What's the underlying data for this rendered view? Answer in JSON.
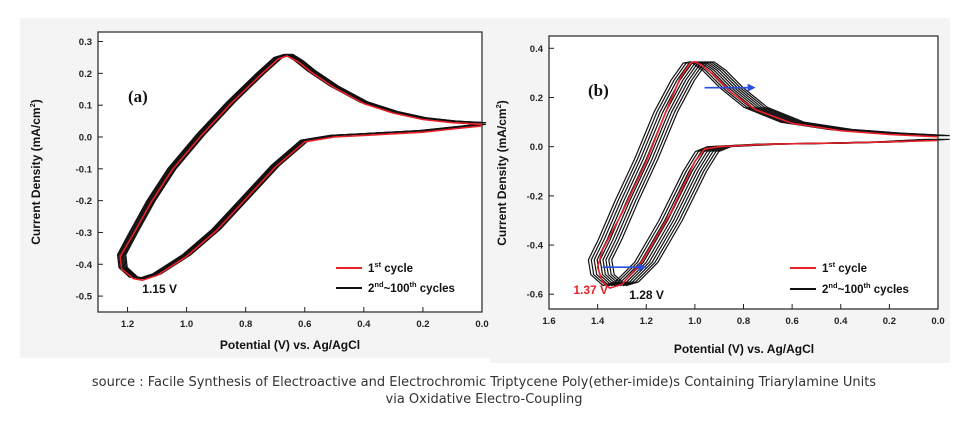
{
  "caption": {
    "line1": "source : Facile Synthesis of Electroactive and Electrochromic Triptycene Poly(ether-imide)s Containing Triarylamine Units",
    "line2": "via Oxidative Electro-Coupling"
  },
  "chart_data": [
    {
      "type": "line",
      "panel_label": "(a)",
      "xlabel": "Potential (V) vs. Ag/AgCl",
      "ylabel": "Current Density (mA/cm²)",
      "ylabel_main": "Current Density (mA/cm",
      "ylabel_sup": "2",
      "ylabel_tail": ")",
      "xlim": [
        1.3,
        0.0
      ],
      "ylim": [
        -0.55,
        0.33
      ],
      "xticks": [
        1.2,
        1.0,
        0.8,
        0.6,
        0.4,
        0.2,
        0.0
      ],
      "xtick_labels": [
        "1.2",
        "1.0",
        "0.8",
        "0.6",
        "0.4",
        "0.2",
        "0.0"
      ],
      "yticks": [
        0.3,
        0.2,
        0.1,
        0.0,
        -0.1,
        -0.2,
        -0.3,
        -0.4,
        -0.5
      ],
      "ytick_labels": [
        "0.3",
        "0.2",
        "0.1",
        "0.0",
        "-0.1",
        "-0.2",
        "-0.3",
        "-0.4",
        "-0.5"
      ],
      "annotations": [
        {
          "text": "1.15 V",
          "x": 1.15,
          "y": -0.49,
          "color": "#111111"
        }
      ],
      "legend": {
        "position": "bottom-right",
        "entries": [
          {
            "color": "#e8202a",
            "label_main": "1",
            "label_sup": "st",
            "label_rest": " cycle"
          },
          {
            "color": "#111111",
            "label_main": "2",
            "label_sup": "nd",
            "label_mid": "~100",
            "label_sup2": "th",
            "label_rest": " cycles"
          }
        ]
      },
      "series": [
        {
          "name": "2nd~100th cycles",
          "color": "#111111",
          "repeat": 8,
          "spread": 0.004,
          "points": [
            [
              0.0,
              0.045
            ],
            [
              0.1,
              0.05
            ],
            [
              0.2,
              0.06
            ],
            [
              0.3,
              0.08
            ],
            [
              0.4,
              0.11
            ],
            [
              0.5,
              0.16
            ],
            [
              0.58,
              0.21
            ],
            [
              0.62,
              0.24
            ],
            [
              0.655,
              0.26
            ],
            [
              0.69,
              0.25
            ],
            [
              0.75,
              0.2
            ],
            [
              0.85,
              0.11
            ],
            [
              0.95,
              0.01
            ],
            [
              1.05,
              -0.1
            ],
            [
              1.12,
              -0.2
            ],
            [
              1.18,
              -0.3
            ],
            [
              1.22,
              -0.37
            ],
            [
              1.215,
              -0.41
            ],
            [
              1.18,
              -0.44
            ],
            [
              1.15,
              -0.445
            ],
            [
              1.1,
              -0.43
            ],
            [
              1.0,
              -0.37
            ],
            [
              0.9,
              -0.29
            ],
            [
              0.8,
              -0.19
            ],
            [
              0.7,
              -0.09
            ],
            [
              0.6,
              -0.01
            ],
            [
              0.5,
              0.005
            ],
            [
              0.4,
              0.01
            ],
            [
              0.3,
              0.015
            ],
            [
              0.2,
              0.02
            ],
            [
              0.1,
              0.03
            ],
            [
              0.0,
              0.04
            ]
          ]
        },
        {
          "name": "1st cycle",
          "color": "#e8202a",
          "repeat": 1,
          "spread": 0,
          "points": [
            [
              0.0,
              0.04
            ],
            [
              0.1,
              0.045
            ],
            [
              0.2,
              0.055
            ],
            [
              0.3,
              0.075
            ],
            [
              0.4,
              0.105
            ],
            [
              0.5,
              0.155
            ],
            [
              0.58,
              0.205
            ],
            [
              0.62,
              0.235
            ],
            [
              0.66,
              0.255
            ],
            [
              0.69,
              0.245
            ],
            [
              0.75,
              0.195
            ],
            [
              0.85,
              0.105
            ],
            [
              0.95,
              0.005
            ],
            [
              1.05,
              -0.105
            ],
            [
              1.12,
              -0.205
            ],
            [
              1.18,
              -0.305
            ],
            [
              1.225,
              -0.375
            ],
            [
              1.22,
              -0.415
            ],
            [
              1.18,
              -0.445
            ],
            [
              1.15,
              -0.45
            ],
            [
              1.1,
              -0.435
            ],
            [
              1.0,
              -0.375
            ],
            [
              0.9,
              -0.295
            ],
            [
              0.8,
              -0.195
            ],
            [
              0.7,
              -0.095
            ],
            [
              0.6,
              -0.015
            ],
            [
              0.5,
              0.0
            ],
            [
              0.4,
              0.005
            ],
            [
              0.3,
              0.01
            ],
            [
              0.2,
              0.015
            ],
            [
              0.1,
              0.025
            ],
            [
              0.0,
              0.035
            ]
          ]
        }
      ]
    },
    {
      "type": "line",
      "panel_label": "(b)",
      "xlabel": "Potential (V) vs. Ag/AgCl",
      "ylabel": "Current Density (mA/cm²)",
      "ylabel_main": "Current Density (mA/cm",
      "ylabel_sup": "2",
      "ylabel_tail": ")",
      "xlim": [
        1.6,
        0.0
      ],
      "ylim": [
        -0.66,
        0.45
      ],
      "xticks": [
        1.6,
        1.4,
        1.2,
        1.0,
        0.8,
        0.6,
        0.4,
        0.2,
        0.0
      ],
      "xtick_labels": [
        "1.6",
        "1.4",
        "1.2",
        "1.0",
        "0.8",
        "0.6",
        "0.4",
        "0.2",
        "0.0"
      ],
      "yticks": [
        0.4,
        0.2,
        0.0,
        -0.2,
        -0.4,
        -0.6
      ],
      "ytick_labels": [
        "0.4",
        "0.2",
        "0.0",
        "-0.2",
        "-0.4",
        "-0.6"
      ],
      "annotations": [
        {
          "text": "1.37 V",
          "x": 1.5,
          "y": -0.6,
          "color": "#e8202a"
        },
        {
          "text": "1.28 V",
          "x": 1.27,
          "y": -0.62,
          "color": "#111111"
        }
      ],
      "arrows": [
        {
          "from": [
            0.96,
            0.24
          ],
          "to": [
            0.75,
            0.24
          ],
          "color": "#2b4fd8"
        },
        {
          "from": [
            1.38,
            -0.49
          ],
          "to": [
            1.2,
            -0.49
          ],
          "color": "#2b4fd8"
        }
      ],
      "legend": {
        "position": "bottom-right",
        "entries": [
          {
            "color": "#e8202a",
            "label_main": "1",
            "label_sup": "st",
            "label_rest": " cycle"
          },
          {
            "color": "#111111",
            "label_main": "2",
            "label_sup": "nd",
            "label_mid": "~100",
            "label_sup2": "th",
            "label_rest": " cycles"
          }
        ]
      },
      "series": [
        {
          "name": "2nd~100th cycles",
          "color": "#111111",
          "repeat": 9,
          "spread": 0.012,
          "points": [
            [
              0.0,
              0.045
            ],
            [
              0.2,
              0.055
            ],
            [
              0.4,
              0.07
            ],
            [
              0.6,
              0.1
            ],
            [
              0.75,
              0.16
            ],
            [
              0.85,
              0.24
            ],
            [
              0.92,
              0.31
            ],
            [
              0.97,
              0.345
            ],
            [
              1.0,
              0.34
            ],
            [
              1.05,
              0.27
            ],
            [
              1.12,
              0.14
            ],
            [
              1.2,
              -0.05
            ],
            [
              1.28,
              -0.22
            ],
            [
              1.35,
              -0.38
            ],
            [
              1.39,
              -0.46
            ],
            [
              1.38,
              -0.52
            ],
            [
              1.33,
              -0.565
            ],
            [
              1.28,
              -0.55
            ],
            [
              1.2,
              -0.47
            ],
            [
              1.1,
              -0.3
            ],
            [
              1.0,
              -0.1
            ],
            [
              0.95,
              -0.02
            ],
            [
              0.9,
              0.0
            ],
            [
              0.7,
              0.01
            ],
            [
              0.4,
              0.015
            ],
            [
              0.2,
              0.02
            ],
            [
              0.0,
              0.03
            ]
          ]
        },
        {
          "name": "1st cycle",
          "color": "#e8202a",
          "repeat": 1,
          "spread": 0,
          "points": [
            [
              0.0,
              0.04
            ],
            [
              0.2,
              0.05
            ],
            [
              0.4,
              0.065
            ],
            [
              0.6,
              0.095
            ],
            [
              0.75,
              0.15
            ],
            [
              0.85,
              0.22
            ],
            [
              0.92,
              0.29
            ],
            [
              0.97,
              0.33
            ],
            [
              1.0,
              0.345
            ],
            [
              1.02,
              0.34
            ],
            [
              1.06,
              0.28
            ],
            [
              1.12,
              0.14
            ],
            [
              1.2,
              -0.06
            ],
            [
              1.3,
              -0.27
            ],
            [
              1.38,
              -0.42
            ],
            [
              1.4,
              -0.49
            ],
            [
              1.38,
              -0.55
            ],
            [
              1.35,
              -0.575
            ],
            [
              1.3,
              -0.56
            ],
            [
              1.22,
              -0.47
            ],
            [
              1.1,
              -0.27
            ],
            [
              1.0,
              -0.06
            ],
            [
              0.96,
              -0.01
            ],
            [
              0.9,
              0.0
            ],
            [
              0.7,
              0.01
            ],
            [
              0.4,
              0.015
            ],
            [
              0.2,
              0.02
            ],
            [
              0.0,
              0.025
            ]
          ]
        }
      ]
    }
  ]
}
